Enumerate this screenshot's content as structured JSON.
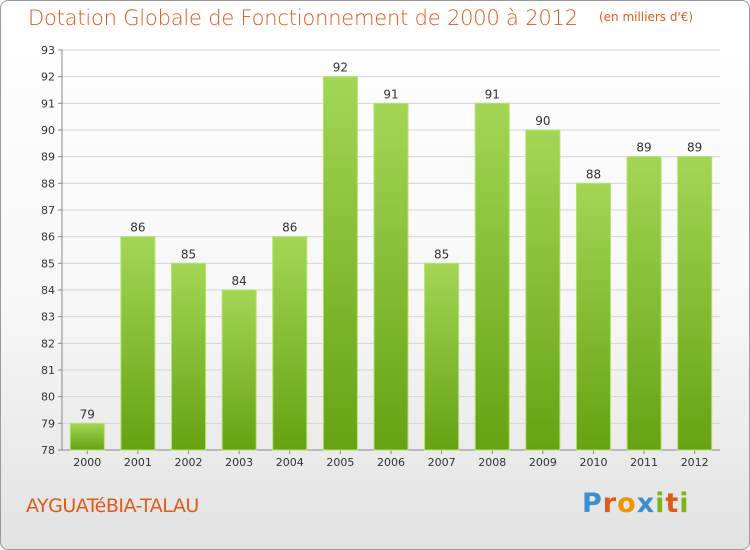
{
  "header": {
    "title": "Dotation Globale de Fonctionnement de 2000 à 2012",
    "unit": "(en milliers d'€)"
  },
  "footer": {
    "commune": "AYGUATéBIA-TALAU",
    "logo_text": "Proxiti"
  },
  "colors": {
    "accent": "#e05a1a",
    "bar_top": "#9fd34f",
    "bar_bottom": "#66a212"
  },
  "chart_data": {
    "type": "bar",
    "title": "Dotation Globale de Fonctionnement de 2000 à 2012",
    "subtitle": "(en milliers d'€)",
    "categories": [
      "2000",
      "2001",
      "2002",
      "2003",
      "2004",
      "2005",
      "2006",
      "2007",
      "2008",
      "2009",
      "2010",
      "2011",
      "2012"
    ],
    "values": [
      79,
      86,
      85,
      84,
      86,
      92,
      91,
      85,
      91,
      90,
      88,
      89,
      89
    ],
    "ylim": [
      78,
      93
    ],
    "yticks": [
      78,
      79,
      80,
      81,
      82,
      83,
      84,
      85,
      86,
      87,
      88,
      89,
      90,
      91,
      92,
      93
    ],
    "grid": true,
    "data_labels": true
  }
}
